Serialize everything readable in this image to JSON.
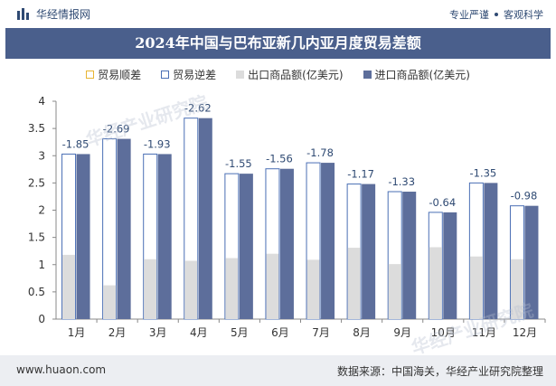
{
  "header": {
    "brand": "华经情报网",
    "right_left": "专业严谨",
    "right_right": "客观科学"
  },
  "title": "2024年中国与巴布亚新几内亚月度贸易差额",
  "legend": {
    "surplus": "贸易顺差",
    "deficit": "贸易逆差",
    "export": "出口商品额(亿美元)",
    "import": "进口商品额(亿美元)"
  },
  "colors": {
    "title_bg": "#4a5f8c",
    "export": "#dcdcdc",
    "import": "#5d6e9b",
    "surplus": "#e8b533",
    "deficit": "#4a6fb5"
  },
  "footer": {
    "website": "www.huaon.com",
    "source": "数据来源：中国海关，华经产业研究院整理"
  },
  "watermark": {
    "text": "华经产业研究院",
    "url": "www.huaon.com"
  },
  "chart_data": {
    "type": "bar",
    "categories": [
      "1月",
      "2月",
      "3月",
      "4月",
      "5月",
      "6月",
      "7月",
      "8月",
      "9月",
      "10月",
      "11月",
      "12月"
    ],
    "series": [
      {
        "name": "出口商品额(亿美元)",
        "values": [
          1.18,
          0.62,
          1.1,
          1.07,
          1.12,
          1.2,
          1.09,
          1.31,
          1.01,
          1.32,
          1.15,
          1.1
        ]
      },
      {
        "name": "进口商品额(亿美元)",
        "values": [
          3.03,
          3.31,
          3.03,
          3.69,
          2.67,
          2.76,
          2.87,
          2.48,
          2.34,
          1.96,
          2.5,
          2.08
        ]
      },
      {
        "name": "贸易差额",
        "values": [
          -1.85,
          -2.69,
          -1.93,
          -2.62,
          -1.55,
          -1.56,
          -1.78,
          -1.17,
          -1.33,
          -0.64,
          -1.35,
          -0.98
        ]
      }
    ],
    "data_labels": [
      "-1.85",
      "-2.69",
      "-1.93",
      "-2.62",
      "-1.55",
      "-1.56",
      "-1.78",
      "-1.17",
      "-1.33",
      "-0.64",
      "-1.35",
      "-0.98"
    ],
    "yticks": [
      "0",
      "0.5",
      "1",
      "1.5",
      "2",
      "2.5",
      "3",
      "3.5",
      "4"
    ],
    "ylim": [
      0,
      4
    ],
    "grid": false,
    "legend_position": "top"
  }
}
